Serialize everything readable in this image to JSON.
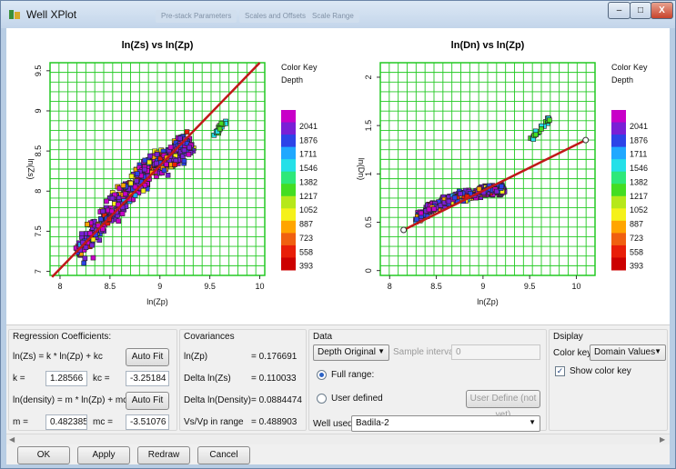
{
  "window": {
    "title": "Well XPlot",
    "ghost_tabs": [
      "Pre-stack Parameters",
      "Scales and Offsets",
      "Scale Range"
    ]
  },
  "chart_data": [
    {
      "type": "scatter",
      "title": "ln(Zs) vs ln(Zp)",
      "xlabel": "ln(Zp)",
      "ylabel": "ln(Zs)",
      "xlim": [
        7.9,
        10.05
      ],
      "ylim": [
        6.95,
        9.6
      ],
      "xticks": [
        "8",
        "8.5",
        "9",
        "9.5",
        "10"
      ],
      "yticks": [
        "7",
        "7.5",
        "8",
        "8.5",
        "9",
        "9.5"
      ],
      "xtick_values": [
        8,
        8.5,
        9,
        9.5,
        10
      ],
      "ytick_values": [
        7,
        7.5,
        8,
        8.5,
        9,
        9.5
      ],
      "grid": true,
      "regression_line": {
        "x": [
          7.92,
          10.0
        ],
        "y": [
          6.93,
          9.6
        ]
      },
      "clusters": [
        {
          "x": [
            8.2,
            8.35,
            8.5,
            8.65,
            8.8,
            8.95,
            9.1,
            9.25
          ],
          "y": [
            7.25,
            7.5,
            7.75,
            7.95,
            8.15,
            8.3,
            8.45,
            8.55
          ],
          "spread": 0.22
        },
        {
          "x": [
            9.5,
            9.55,
            9.6,
            9.65
          ],
          "y": [
            8.62,
            8.7,
            8.78,
            8.86
          ],
          "spread": 0.05
        }
      ],
      "legend": {
        "title": "Color Key",
        "subtitle": "Depth",
        "values": [
          "2041",
          "1876",
          "1711",
          "1546",
          "1382",
          "1217",
          "1052",
          "887",
          "723",
          "558",
          "393"
        ]
      }
    },
    {
      "type": "scatter",
      "title": "ln(Dn) vs ln(Zp)",
      "xlabel": "ln(Zp)",
      "ylabel": "ln(Dn)",
      "xlim": [
        7.9,
        10.2
      ],
      "ylim": [
        -0.05,
        2.15
      ],
      "xticks": [
        "8",
        "8.5",
        "9",
        "9.5",
        "10"
      ],
      "yticks": [
        "0",
        "0.5",
        "1",
        "1.5",
        "2"
      ],
      "xtick_values": [
        8,
        8.5,
        9,
        9.5,
        10
      ],
      "ytick_values": [
        0,
        0.5,
        1,
        1.5,
        2
      ],
      "grid": true,
      "regression_line": {
        "x": [
          8.15,
          10.1
        ],
        "y": [
          0.42,
          1.35
        ]
      },
      "clusters": [
        {
          "x": [
            8.3,
            8.45,
            8.6,
            8.75,
            8.9,
            9.05,
            9.2
          ],
          "y": [
            0.55,
            0.65,
            0.72,
            0.76,
            0.8,
            0.82,
            0.84
          ],
          "spread": 0.07
        },
        {
          "x": [
            9.5,
            9.55,
            9.6,
            9.65,
            9.7
          ],
          "y": [
            1.35,
            1.4,
            1.45,
            1.5,
            1.55
          ],
          "spread": 0.04
        }
      ],
      "legend": {
        "title": "Color Key",
        "subtitle": "Depth",
        "values": [
          "2041",
          "1876",
          "1711",
          "1546",
          "1382",
          "1217",
          "1052",
          "887",
          "723",
          "558",
          "393"
        ]
      }
    }
  ],
  "colors": {
    "legend": [
      "#c800c8",
      "#7a1fd6",
      "#2d43e8",
      "#1fa8ff",
      "#24e0e8",
      "#2ee87a",
      "#44dd22",
      "#b6e81a",
      "#f5f11a",
      "#ffa500",
      "#f06010",
      "#e81e08",
      "#cc0000"
    ],
    "grid": "#22c922",
    "regression": "#c01818"
  },
  "regression": {
    "title": "Regression Coefficients:",
    "eq1": "ln(Zs) = k * ln(Zp) + kc",
    "autofit1": "Auto Fit",
    "k_label": "k =",
    "k_value": "1.28566",
    "kc_label": "kc =",
    "kc_value": "-3.25184",
    "eq2": "ln(density) = m * ln(Zp) + mc",
    "autofit2": "Auto Fit",
    "m_label": "m =",
    "m_value": "0.482385",
    "mc_label": "mc =",
    "mc_value": "-3.51076"
  },
  "covariances": {
    "title": "Covariances",
    "rows": [
      {
        "label": "ln(Zp)",
        "value": "= 0.176691"
      },
      {
        "label": "Delta ln(Zs)",
        "value": "= 0.110033"
      },
      {
        "label": "Delta ln(Density)",
        "value": "= 0.0884474"
      },
      {
        "label": "Vs/Vp in range",
        "value": "= 0.488903"
      }
    ]
  },
  "data_group": {
    "title": "Data",
    "source": "Depth Original",
    "sample_interval_label": "Sample interval:",
    "sample_interval_value": "0",
    "full_range": "Full range:",
    "user_defined": "User defined",
    "user_define_button": "User Define (not yet)",
    "well_used_label": "Well used:",
    "well_used_value": "Badila-2"
  },
  "display_group": {
    "title": "Dsiplay",
    "color_key_label": "Color key:",
    "color_key_value": "Domain Values",
    "show_color_key": "Show color key"
  },
  "buttons": {
    "ok": "OK",
    "apply": "Apply",
    "redraw": "Redraw",
    "cancel": "Cancel"
  },
  "titlebar_buttons": {
    "min": "–",
    "max": "□",
    "close": "X"
  }
}
